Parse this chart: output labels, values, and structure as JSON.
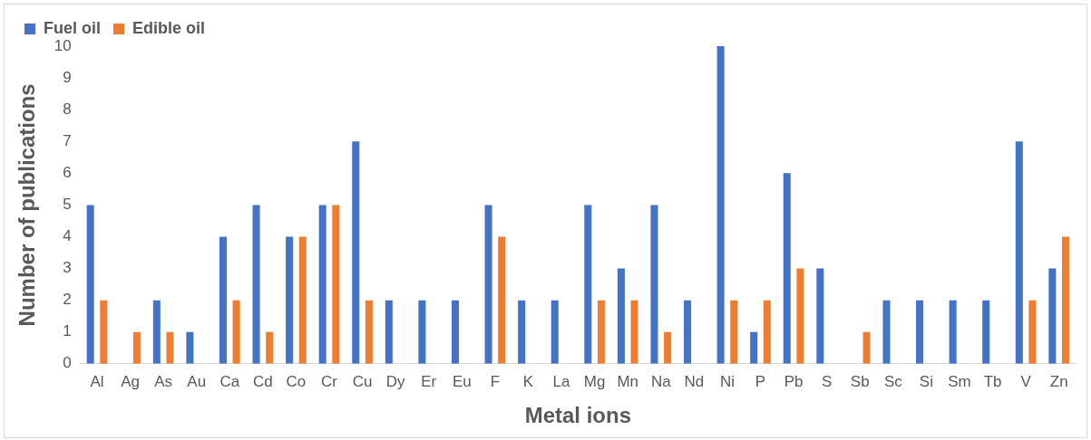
{
  "chart_data": {
    "type": "bar",
    "xlabel": "Metal ions",
    "ylabel": "Number of publications",
    "categories": [
      "Al",
      "Ag",
      "As",
      "Au",
      "Ca",
      "Cd",
      "Co",
      "Cr",
      "Cu",
      "Dy",
      "Er",
      "Eu",
      "F",
      "K",
      "La",
      "Mg",
      "Mn",
      "Na",
      "Nd",
      "Ni",
      "P",
      "Pb",
      "S",
      "Sb",
      "Sc",
      "Si",
      "Sm",
      "Tb",
      "V",
      "Zn"
    ],
    "series": [
      {
        "name": "Fuel oil",
        "color": "#4472c4",
        "values": [
          5,
          0,
          2,
          1,
          4,
          5,
          4,
          5,
          7,
          2,
          2,
          2,
          5,
          2,
          2,
          5,
          3,
          5,
          2,
          10,
          1,
          6,
          3,
          0,
          2,
          2,
          2,
          2,
          7,
          3
        ]
      },
      {
        "name": "Edible oil",
        "color": "#ed7d31",
        "values": [
          2,
          1,
          1,
          0,
          2,
          1,
          4,
          5,
          2,
          0,
          0,
          0,
          4,
          0,
          0,
          2,
          2,
          1,
          0,
          2,
          2,
          3,
          0,
          1,
          0,
          0,
          0,
          0,
          2,
          4
        ]
      }
    ],
    "ylim": [
      0,
      10
    ],
    "yticks": [
      0,
      1,
      2,
      3,
      4,
      5,
      6,
      7,
      8,
      9,
      10
    ],
    "grid": false,
    "legend": "top left"
  }
}
